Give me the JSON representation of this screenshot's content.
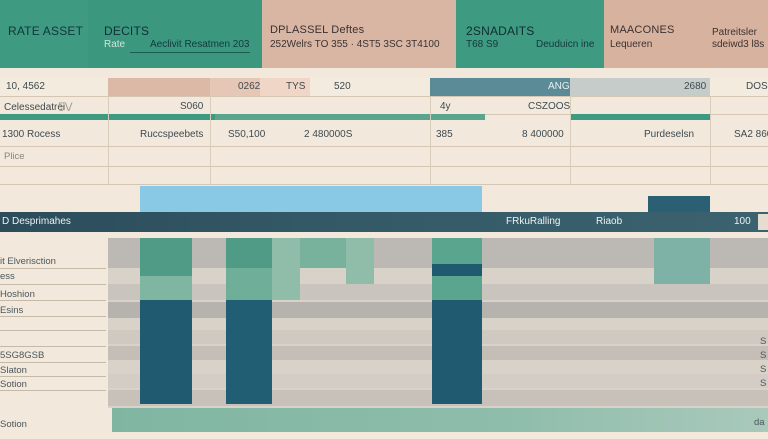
{
  "header": {
    "panels": [
      {
        "title": "RATE ASSET",
        "sub": ""
      },
      {
        "title": "DECITS",
        "sub_left": "Rate",
        "sub_right": "Aeclivit Resatmen 203"
      },
      {
        "title": "DPLASSEL Deftes",
        "sub": "252Welrs  TO    355 · 4ST5  3SC 3T4100"
      },
      {
        "title": "2SNADAITS",
        "sub_left": "T68 S9",
        "sub_right": "Deuduicn ine"
      },
      {
        "title": "MAACONES",
        "sub": "Lequeren"
      },
      {
        "title": "",
        "sub": "Patreitsler",
        "sub2": "sdeiwd3 l8s"
      }
    ]
  },
  "row1": {
    "left": "10, 4562",
    "c2": "0262",
    "c3": "TYS",
    "c4": "520",
    "c5": "ANG",
    "c6": "2680",
    "c7": "DOS"
  },
  "row2": {
    "left": "Celessedatrei",
    "left_extra": "5V",
    "c2": "S060",
    "c3": "4y",
    "c4": "CSZOOS"
  },
  "row3": {
    "left": "1300 Rocess",
    "c2": "Ruccspeebets",
    "c3": "S50,100",
    "c4": "2 480000S",
    "c5": "385",
    "c6": "8 400000",
    "c7": "Purdeselsn",
    "c8": "SA2 860"
  },
  "row4": {
    "left": "Plice"
  },
  "section": {
    "left": "D Desprimahes",
    "mid": "FRkuRalling",
    "right": "Riaob",
    "num": "100"
  },
  "labels": [
    "it Elverisction",
    "ess",
    "Hoshion",
    "Esins",
    "",
    "",
    "5SG8GSB",
    "Slaton",
    "Sotion",
    "",
    "Sotion"
  ],
  "right_marks": [
    "S",
    "S",
    "S",
    "S",
    "da"
  ],
  "colors": {
    "green": "#3e9a80",
    "green_light": "#7fb6a2",
    "peach": "#d4b09c",
    "teal_dark": "#1f5a70",
    "navy": "#2b4b59",
    "blue_light": "#8ac9e6",
    "gray": "#b7b4ae",
    "cream": "#f2e9dc"
  }
}
